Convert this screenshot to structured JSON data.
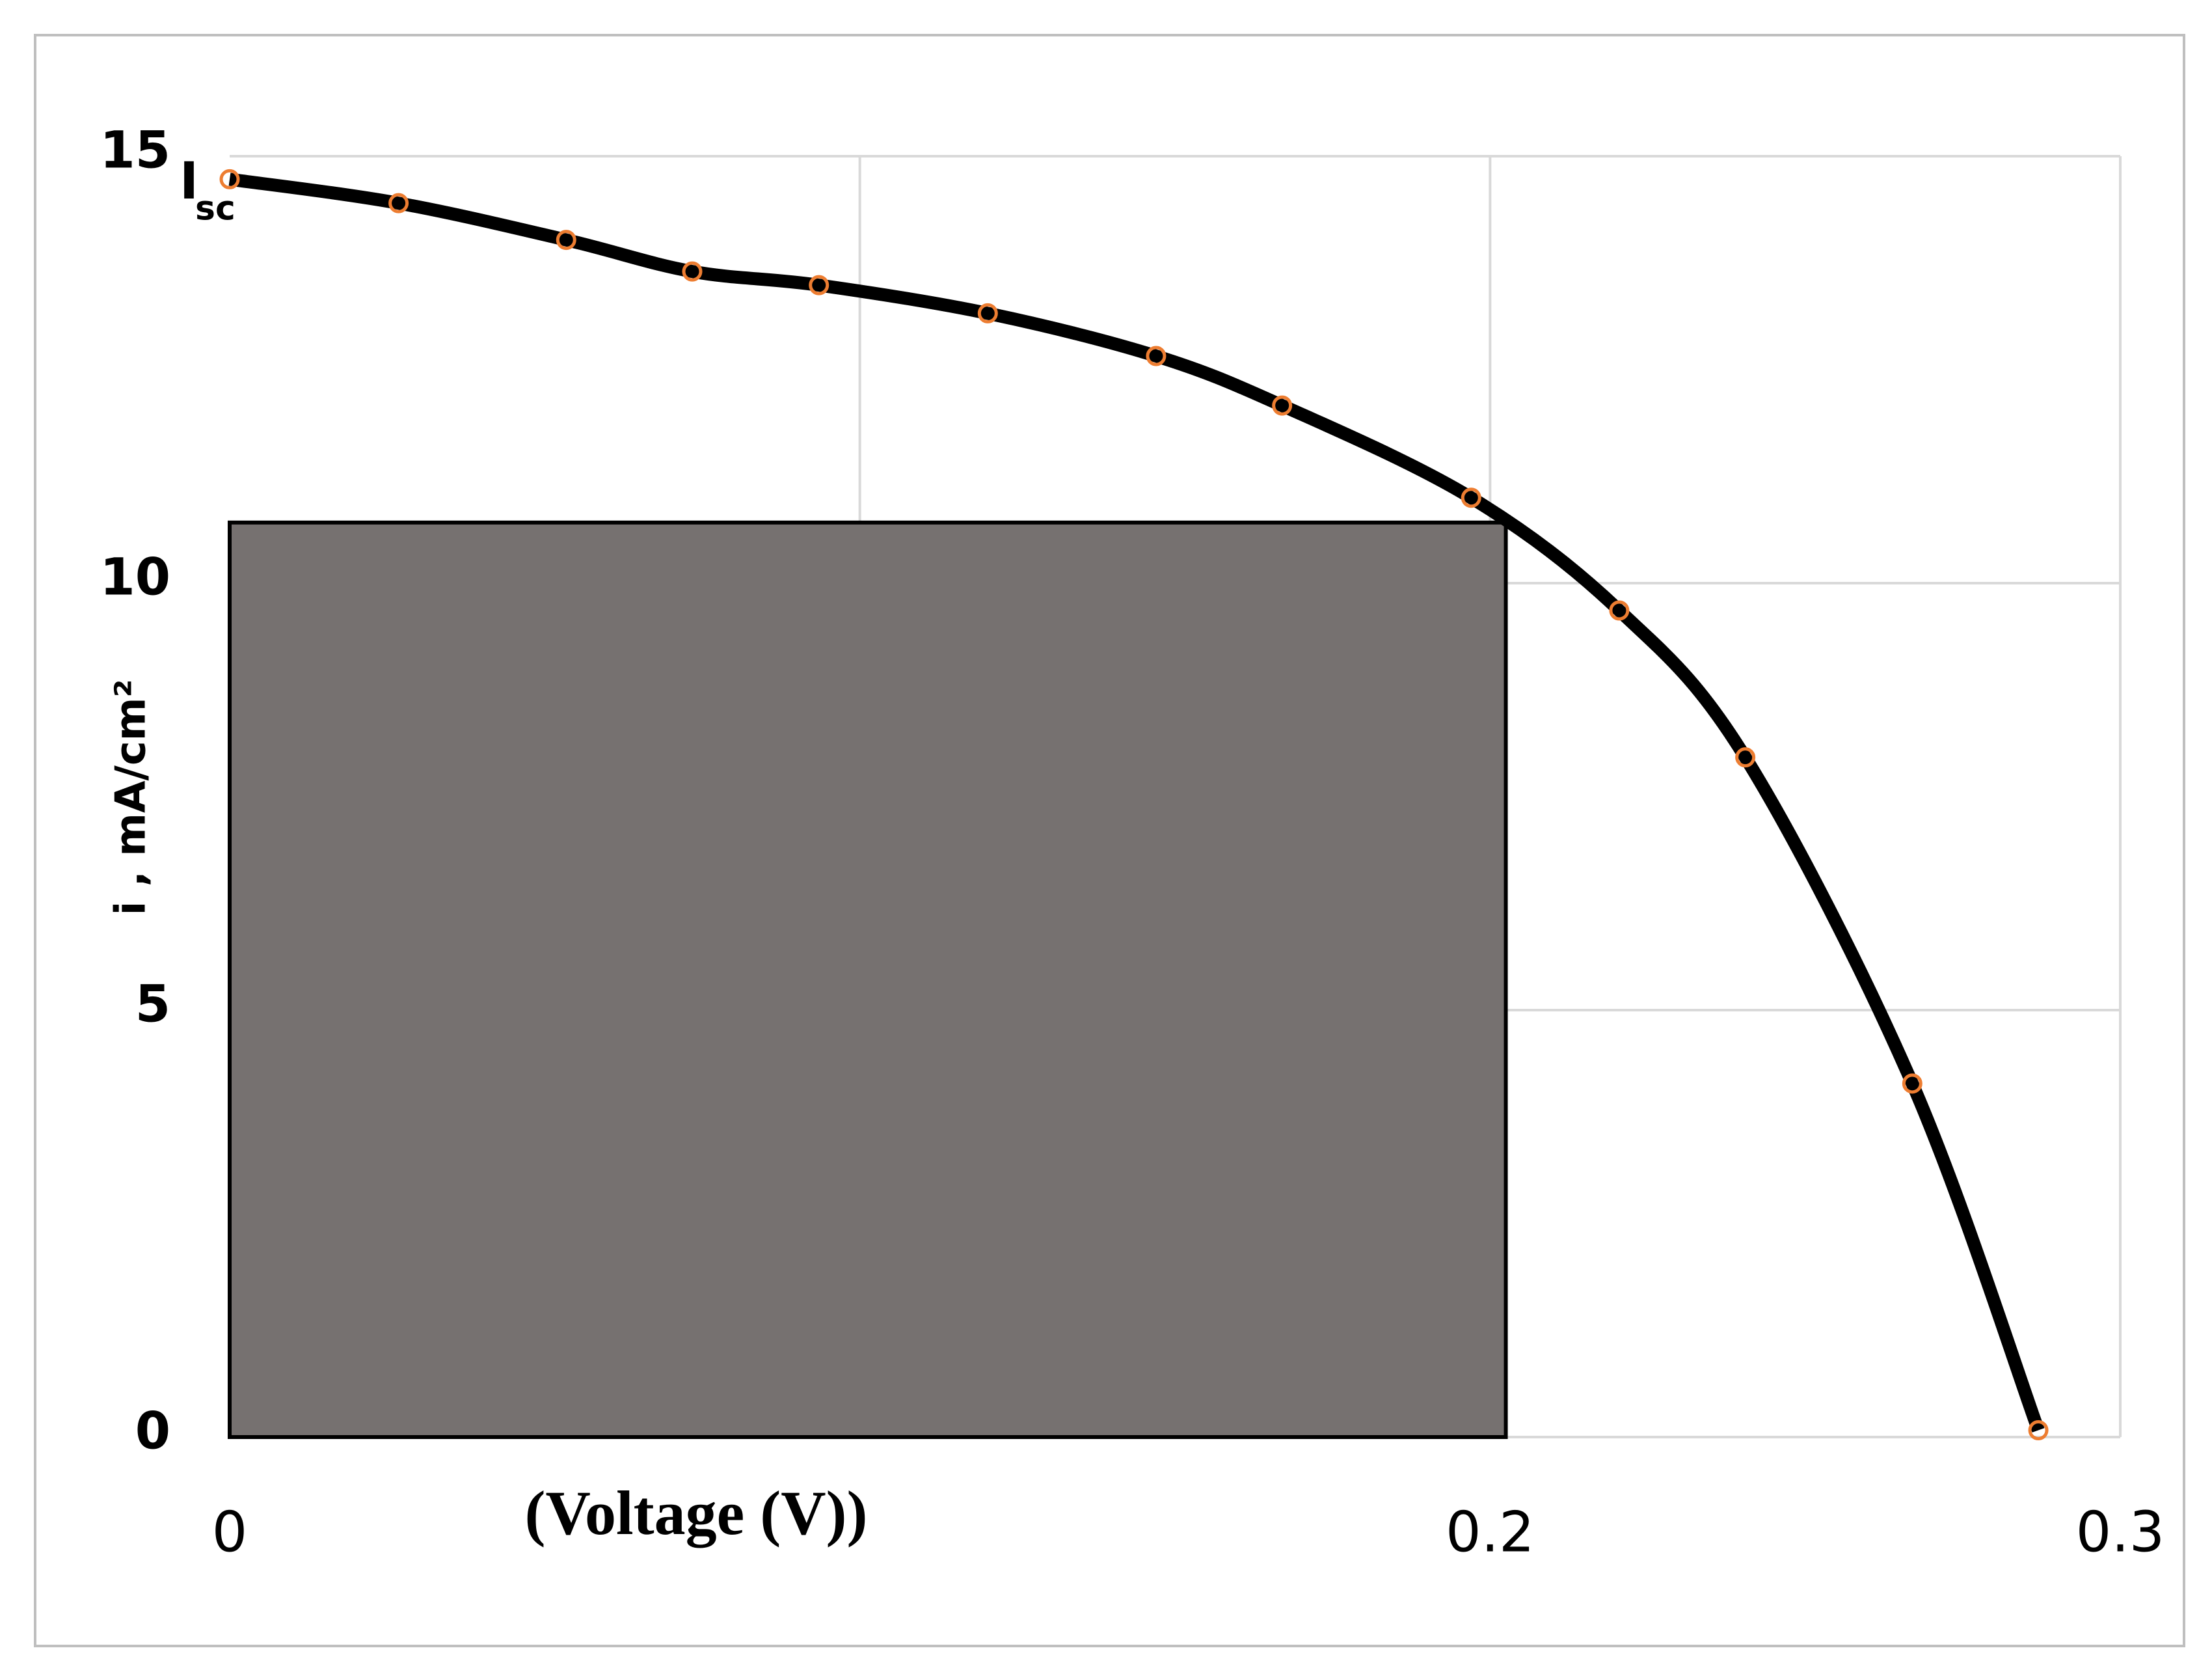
{
  "chart_data": {
    "type": "line",
    "xlabel": "(Voltage (V))",
    "ylabel": "i , mA/cm²",
    "x": [
      0,
      0.0268,
      0.0534,
      0.0734,
      0.0935,
      0.1203,
      0.147,
      0.167,
      0.197,
      0.2205,
      0.2405,
      0.267,
      0.287
    ],
    "series": [
      {
        "color": "#000000",
        "marker_color": "#ed7d31",
        "values": [
          14.73,
          14.45,
          14.02,
          13.65,
          13.49,
          13.16,
          12.66,
          12.08,
          11.0,
          9.68,
          7.96,
          4.14,
          0.08
        ]
      }
    ],
    "max_power_rect": {
      "v": 0.2025,
      "i": 10.71,
      "color": "#767170"
    },
    "isc_label": {
      "main": "I",
      "sub": "sc",
      "at": 0
    },
    "xlim": [
      0,
      0.3
    ],
    "xticks": [
      0,
      {
        "value": 0.1,
        "label": null
      },
      0.2,
      0.3
    ],
    "ylim": [
      0,
      15
    ],
    "yticks": [
      0,
      5,
      10,
      15
    ],
    "grid": true
  }
}
